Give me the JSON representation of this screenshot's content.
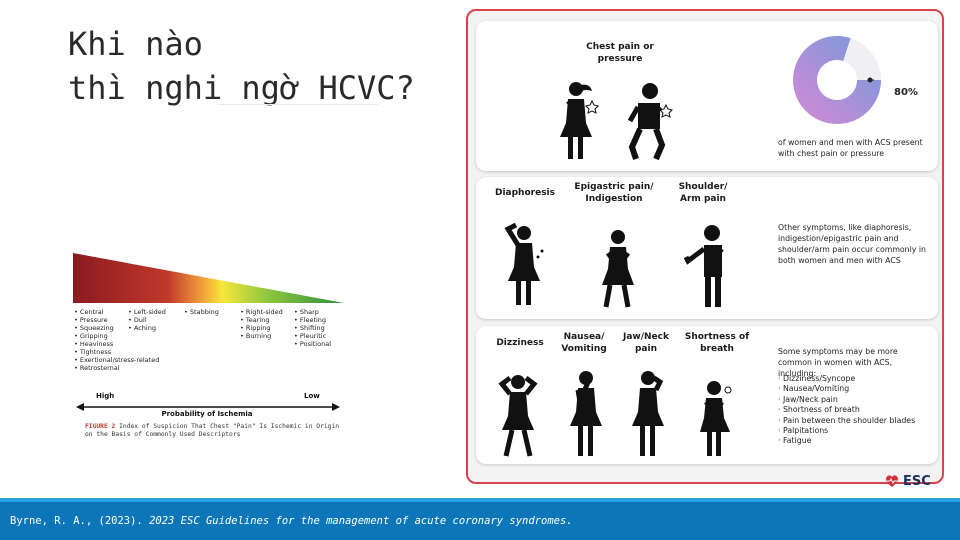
{
  "title": {
    "line1": "Khi nào",
    "line2": "thì nghi ngờ HCVC?"
  },
  "figure": {
    "columns": [
      [
        "Central",
        "Pressure",
        "Squeezing",
        "Gripping",
        "Heaviness",
        "Tightness",
        "Exertional/stress-related",
        "Retrosternal"
      ],
      [
        "Left-sided",
        "Dull",
        "Aching"
      ],
      [
        "Stabbing"
      ],
      [
        "Right-sided",
        "Tearing",
        "Ripping",
        "Burning"
      ],
      [
        "Sharp",
        "Fleeting",
        "Shifting",
        "Pleuritic",
        "Positional"
      ]
    ],
    "high": "High",
    "low": "Low",
    "axis_title": "Probability of Ischemia",
    "caption_label": "FIGURE 2",
    "caption_text": "Index of Suspicion That Chest \"Pain\" Is Ischemic in Origin on the Basis of Commonly Used Descriptors"
  },
  "infographic": {
    "card1": {
      "label": "Chest pain or pressure",
      "percent": "80%",
      "percent_value": 80,
      "text": "of women and men with ACS present with chest pain or pressure"
    },
    "card2": {
      "labels": [
        "Diaphoresis",
        "Epigastric pain/ Indigestion",
        "Shoulder/ Arm pain"
      ],
      "text": "Other symptoms, like diaphoresis, indigestion/epigastric pain and shoulder/arm pain occur commonly in both women and men with ACS"
    },
    "card3": {
      "labels": [
        "Dizziness",
        "Nausea/ Vomiting",
        "Jaw/Neck pain",
        "Shortness of breath"
      ],
      "intro": "Some symptoms may be more common in women with ACS, including:",
      "list": [
        "Dizziness/Syncope",
        "Nausea/Vomiting",
        "Jaw/Neck pain",
        "Shortness of breath",
        "Pain between the shoulder blades",
        "Palpitations",
        "Fatigue"
      ]
    },
    "logo": "ESC"
  },
  "footer": {
    "authors": "Byrne, R. A., (2023). ",
    "title": "2023 ESC Guidelines for the management of acute coronary syndromes."
  },
  "colors": {
    "panel_border": "#d9424a",
    "footer": "#0d76b9",
    "donut_start": "#c98bd6",
    "donut_end": "#7f98da"
  }
}
